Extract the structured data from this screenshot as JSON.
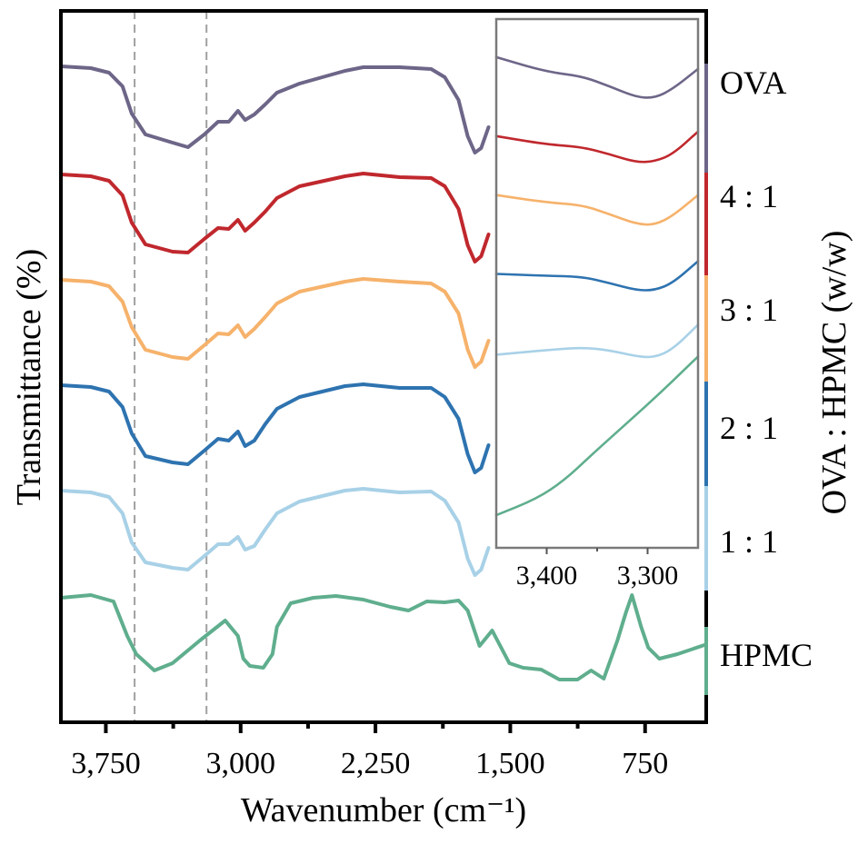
{
  "chart_data": {
    "type": "line",
    "title": "",
    "xlabel": "Wavenumber (cm⁻¹)",
    "ylabel": "Transmittance (%)",
    "right_label": "OVA : HPMC (w/w)",
    "x_reversed": true,
    "xlim": [
      4000,
      410
    ],
    "ylim_au": [
      0.0,
      7.83
    ],
    "xticks": [
      3750,
      3000,
      2250,
      1500,
      750
    ],
    "xtick_labels": [
      "3,750",
      "3,000",
      "2,250",
      "1,500",
      "750"
    ],
    "minor_xticks": [
      3375,
      2625,
      1875,
      1125
    ],
    "grid": false,
    "reference_lines": [
      {
        "x": 3590,
        "style": "dashed",
        "color": "#a0a0a0"
      },
      {
        "x": 3190,
        "style": "dashed",
        "color": "#a0a0a0"
      }
    ],
    "series": [
      {
        "name": "OVA",
        "label": "OVA",
        "color": "#6e6688",
        "points": [
          [
            4000,
            7.22
          ],
          [
            3833,
            7.2
          ],
          [
            3732,
            7.15
          ],
          [
            3657,
            7.0
          ],
          [
            3606,
            6.7
          ],
          [
            3530,
            6.47
          ],
          [
            3379,
            6.38
          ],
          [
            3293,
            6.33
          ],
          [
            3202,
            6.47
          ],
          [
            3126,
            6.61
          ],
          [
            3066,
            6.61
          ],
          [
            3015,
            6.73
          ],
          [
            2975,
            6.63
          ],
          [
            2924,
            6.69
          ],
          [
            2864,
            6.8
          ],
          [
            2798,
            6.93
          ],
          [
            2672,
            7.03
          ],
          [
            2420,
            7.17
          ],
          [
            2318,
            7.21
          ],
          [
            2116,
            7.21
          ],
          [
            1940,
            7.19
          ],
          [
            1864,
            7.1
          ],
          [
            1788,
            6.85
          ],
          [
            1737,
            6.45
          ],
          [
            1697,
            6.27
          ],
          [
            1662,
            6.32
          ],
          [
            1621,
            6.55
          ]
        ]
      },
      {
        "name": "4:1",
        "label": "4 : 1",
        "color": "#c0282d",
        "points": [
          [
            4000,
            6.03
          ],
          [
            3833,
            6.01
          ],
          [
            3732,
            5.96
          ],
          [
            3657,
            5.8
          ],
          [
            3606,
            5.5
          ],
          [
            3530,
            5.26
          ],
          [
            3379,
            5.18
          ],
          [
            3293,
            5.17
          ],
          [
            3202,
            5.32
          ],
          [
            3126,
            5.44
          ],
          [
            3066,
            5.43
          ],
          [
            3015,
            5.53
          ],
          [
            2975,
            5.41
          ],
          [
            2924,
            5.5
          ],
          [
            2864,
            5.62
          ],
          [
            2798,
            5.77
          ],
          [
            2672,
            5.9
          ],
          [
            2420,
            6.01
          ],
          [
            2318,
            6.04
          ],
          [
            2116,
            6.0
          ],
          [
            1940,
            5.99
          ],
          [
            1864,
            5.9
          ],
          [
            1788,
            5.65
          ],
          [
            1737,
            5.25
          ],
          [
            1697,
            5.07
          ],
          [
            1662,
            5.13
          ],
          [
            1621,
            5.37
          ]
        ]
      },
      {
        "name": "3:1",
        "label": "3 : 1",
        "color": "#f6b26b",
        "points": [
          [
            4000,
            4.87
          ],
          [
            3833,
            4.85
          ],
          [
            3732,
            4.8
          ],
          [
            3657,
            4.63
          ],
          [
            3606,
            4.35
          ],
          [
            3530,
            4.1
          ],
          [
            3379,
            4.02
          ],
          [
            3293,
            4.0
          ],
          [
            3202,
            4.15
          ],
          [
            3126,
            4.28
          ],
          [
            3066,
            4.27
          ],
          [
            3015,
            4.37
          ],
          [
            2975,
            4.24
          ],
          [
            2924,
            4.33
          ],
          [
            2864,
            4.46
          ],
          [
            2798,
            4.61
          ],
          [
            2672,
            4.74
          ],
          [
            2420,
            4.85
          ],
          [
            2318,
            4.88
          ],
          [
            2116,
            4.85
          ],
          [
            1940,
            4.83
          ],
          [
            1864,
            4.74
          ],
          [
            1788,
            4.5
          ],
          [
            1737,
            4.1
          ],
          [
            1697,
            3.91
          ],
          [
            1662,
            3.97
          ],
          [
            1621,
            4.2
          ]
        ]
      },
      {
        "name": "2:1",
        "label": "2 : 1",
        "color": "#2e73b0",
        "points": [
          [
            4000,
            3.71
          ],
          [
            3833,
            3.69
          ],
          [
            3732,
            3.64
          ],
          [
            3657,
            3.47
          ],
          [
            3606,
            3.18
          ],
          [
            3530,
            2.93
          ],
          [
            3379,
            2.86
          ],
          [
            3293,
            2.84
          ],
          [
            3202,
            2.99
          ],
          [
            3126,
            3.12
          ],
          [
            3066,
            3.1
          ],
          [
            3015,
            3.2
          ],
          [
            2975,
            3.04
          ],
          [
            2924,
            3.1
          ],
          [
            2864,
            3.28
          ],
          [
            2798,
            3.45
          ],
          [
            2672,
            3.58
          ],
          [
            2420,
            3.7
          ],
          [
            2318,
            3.72
          ],
          [
            2116,
            3.68
          ],
          [
            1940,
            3.68
          ],
          [
            1864,
            3.58
          ],
          [
            1788,
            3.34
          ],
          [
            1737,
            2.95
          ],
          [
            1697,
            2.75
          ],
          [
            1662,
            2.8
          ],
          [
            1621,
            3.05
          ]
        ]
      },
      {
        "name": "1:1",
        "label": "1 : 1",
        "color": "#a8d1e7",
        "points": [
          [
            4000,
            2.55
          ],
          [
            3833,
            2.53
          ],
          [
            3732,
            2.48
          ],
          [
            3657,
            2.3
          ],
          [
            3606,
            1.98
          ],
          [
            3530,
            1.76
          ],
          [
            3379,
            1.7
          ],
          [
            3293,
            1.68
          ],
          [
            3202,
            1.83
          ],
          [
            3126,
            1.96
          ],
          [
            3066,
            1.96
          ],
          [
            3015,
            2.04
          ],
          [
            2975,
            1.9
          ],
          [
            2924,
            1.94
          ],
          [
            2864,
            2.12
          ],
          [
            2798,
            2.3
          ],
          [
            2672,
            2.43
          ],
          [
            2420,
            2.55
          ],
          [
            2318,
            2.57
          ],
          [
            2116,
            2.53
          ],
          [
            1940,
            2.54
          ],
          [
            1864,
            2.44
          ],
          [
            1788,
            2.2
          ],
          [
            1737,
            1.8
          ],
          [
            1697,
            1.62
          ],
          [
            1662,
            1.68
          ],
          [
            1621,
            1.92
          ]
        ]
      },
      {
        "name": "HPMC",
        "label": "HPMC",
        "color": "#5fae8e",
        "points": [
          [
            4000,
            1.37
          ],
          [
            3833,
            1.4
          ],
          [
            3707,
            1.33
          ],
          [
            3631,
            0.95
          ],
          [
            3581,
            0.75
          ],
          [
            3480,
            0.57
          ],
          [
            3379,
            0.65
          ],
          [
            3227,
            0.9
          ],
          [
            3086,
            1.12
          ],
          [
            3015,
            0.95
          ],
          [
            2985,
            0.7
          ],
          [
            2949,
            0.62
          ],
          [
            2874,
            0.6
          ],
          [
            2823,
            0.75
          ],
          [
            2798,
            1.05
          ],
          [
            2722,
            1.31
          ],
          [
            2596,
            1.37
          ],
          [
            2470,
            1.39
          ],
          [
            2318,
            1.35
          ],
          [
            2167,
            1.27
          ],
          [
            2066,
            1.23
          ],
          [
            1965,
            1.33
          ],
          [
            1864,
            1.32
          ],
          [
            1788,
            1.34
          ],
          [
            1737,
            1.23
          ],
          [
            1671,
            0.84
          ],
          [
            1601,
            1.01
          ],
          [
            1505,
            0.65
          ],
          [
            1429,
            0.6
          ],
          [
            1328,
            0.58
          ],
          [
            1227,
            0.47
          ],
          [
            1126,
            0.47
          ],
          [
            1050,
            0.57
          ],
          [
            980,
            0.48
          ],
          [
            904,
            0.9
          ],
          [
            858,
            1.2
          ],
          [
            823,
            1.4
          ],
          [
            772,
            1.05
          ],
          [
            732,
            0.82
          ],
          [
            671,
            0.7
          ],
          [
            570,
            0.75
          ],
          [
            420,
            0.85
          ]
        ]
      }
    ],
    "inset": {
      "xlim": [
        3450,
        3250
      ],
      "xticks": [
        3400,
        3300
      ],
      "xtick_labels": [
        "3,400",
        "3,300"
      ],
      "minor_xticks": [
        3350
      ],
      "ylim_au": [
        1.91,
        7.74
      ],
      "series": [
        {
          "name": "OVA",
          "color": "#6e6688",
          "points": [
            [
              3450,
              7.32
            ],
            [
              3401,
              7.16
            ],
            [
              3365,
              7.11
            ],
            [
              3338,
              7.0
            ],
            [
              3311,
              6.88
            ],
            [
              3293,
              6.87
            ],
            [
              3275,
              6.97
            ],
            [
              3250,
              7.19
            ]
          ]
        },
        {
          "name": "4:1",
          "color": "#c0282d",
          "points": [
            [
              3450,
              6.45
            ],
            [
              3401,
              6.36
            ],
            [
              3365,
              6.33
            ],
            [
              3338,
              6.25
            ],
            [
              3311,
              6.16
            ],
            [
              3293,
              6.17
            ],
            [
              3275,
              6.25
            ],
            [
              3250,
              6.5
            ]
          ]
        },
        {
          "name": "3:1",
          "color": "#f6b26b",
          "points": [
            [
              3450,
              5.8
            ],
            [
              3401,
              5.72
            ],
            [
              3365,
              5.69
            ],
            [
              3338,
              5.59
            ],
            [
              3311,
              5.48
            ],
            [
              3293,
              5.47
            ],
            [
              3275,
              5.57
            ],
            [
              3250,
              5.8
            ]
          ]
        },
        {
          "name": "2:1",
          "color": "#2e73b0",
          "points": [
            [
              3450,
              4.93
            ],
            [
              3401,
              4.91
            ],
            [
              3365,
              4.9
            ],
            [
              3338,
              4.83
            ],
            [
              3311,
              4.75
            ],
            [
              3293,
              4.75
            ],
            [
              3275,
              4.83
            ],
            [
              3250,
              5.07
            ]
          ]
        },
        {
          "name": "1:1",
          "color": "#a8d1e7",
          "points": [
            [
              3450,
              4.04
            ],
            [
              3401,
              4.09
            ],
            [
              3365,
              4.12
            ],
            [
              3338,
              4.09
            ],
            [
              3311,
              4.02
            ],
            [
              3293,
              4.01
            ],
            [
              3275,
              4.1
            ],
            [
              3250,
              4.37
            ]
          ]
        },
        {
          "name": "HPMC",
          "color": "#5fae8e",
          "points": [
            [
              3450,
              2.27
            ],
            [
              3410,
              2.45
            ],
            [
              3383,
              2.65
            ],
            [
              3356,
              2.93
            ],
            [
              3329,
              3.2
            ],
            [
              3302,
              3.47
            ],
            [
              3275,
              3.75
            ],
            [
              3250,
              4.02
            ]
          ]
        }
      ]
    }
  }
}
